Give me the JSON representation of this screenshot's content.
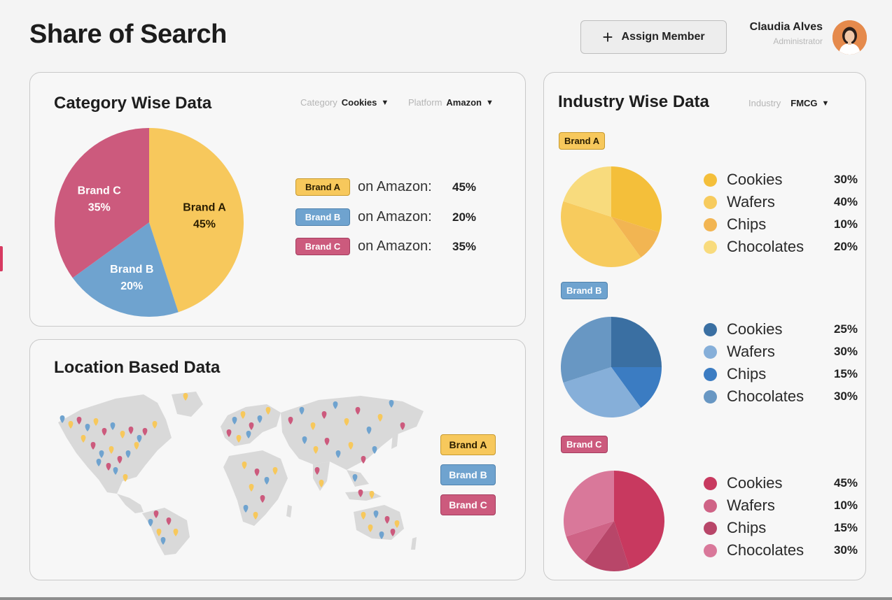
{
  "header": {
    "title": "Share of Search",
    "assign_label": "Assign Member",
    "user_name": "Claudia Alves",
    "user_role": "Administrator"
  },
  "category": {
    "title": "Category Wise Data",
    "filter_category_label": "Category",
    "filter_category_value": "Cookies",
    "filter_platform_label": "Platform",
    "filter_platform_value": "Amazon",
    "legend": [
      {
        "brand": "Brand A",
        "text": "on Amazon:",
        "pct": "45%"
      },
      {
        "brand": "Brand B",
        "text": "on Amazon:",
        "pct": "20%"
      },
      {
        "brand": "Brand C",
        "text": "on Amazon:",
        "pct": "35%"
      }
    ]
  },
  "location": {
    "title": "Location Based Data",
    "legend": [
      "Brand A",
      "Brand B",
      "Brand C"
    ]
  },
  "industry": {
    "title": "Industry Wise Data",
    "filter_label": "Industry",
    "filter_value": "FMCG",
    "brands": [
      {
        "badge": "Brand A",
        "rows": [
          {
            "name": "Cookies",
            "pct": "30%"
          },
          {
            "name": "Wafers",
            "pct": "40%"
          },
          {
            "name": "Chips",
            "pct": "10%"
          },
          {
            "name": "Chocolates",
            "pct": "20%"
          }
        ]
      },
      {
        "badge": "Brand B",
        "rows": [
          {
            "name": "Cookies",
            "pct": "25%"
          },
          {
            "name": "Wafers",
            "pct": "30%"
          },
          {
            "name": "Chips",
            "pct": "15%"
          },
          {
            "name": "Chocolates",
            "pct": "30%"
          }
        ]
      },
      {
        "badge": "Brand C",
        "rows": [
          {
            "name": "Cookies",
            "pct": "45%"
          },
          {
            "name": "Wafers",
            "pct": "10%"
          },
          {
            "name": "Chips",
            "pct": "15%"
          },
          {
            "name": "Chocolates",
            "pct": "30%"
          }
        ]
      }
    ]
  },
  "colors": {
    "brand_a": "#f7c85c",
    "brand_b": "#6fa3cf",
    "brand_c": "#cc5a7d",
    "brand_a_shades": [
      "#f4bf3a",
      "#f7cb5d",
      "#f2b552",
      "#f8db7d"
    ],
    "brand_b_shades": [
      "#3a6fa2",
      "#86afd9",
      "#3b7cc2",
      "#6897c3"
    ],
    "brand_c_shades": [
      "#c8395f",
      "#cf6386",
      "#b84669",
      "#d9789a"
    ]
  },
  "chart_data": [
    {
      "type": "pie",
      "title": "Category Wise Data",
      "categories": [
        "Brand A",
        "Brand B",
        "Brand C"
      ],
      "values": [
        45,
        20,
        35
      ],
      "data_labels": [
        "45%",
        "20%",
        "35%"
      ],
      "colors": [
        "#f7c85c",
        "#6fa3cf",
        "#cc5a7d"
      ]
    },
    {
      "type": "pie",
      "title": "Brand A",
      "categories": [
        "Cookies",
        "Wafers",
        "Chips",
        "Chocolates"
      ],
      "values": [
        30,
        40,
        10,
        20
      ]
    },
    {
      "type": "pie",
      "title": "Brand B",
      "categories": [
        "Cookies",
        "Wafers",
        "Chips",
        "Chocolates"
      ],
      "values": [
        25,
        30,
        15,
        30
      ]
    },
    {
      "type": "pie",
      "title": "Brand C",
      "categories": [
        "Cookies",
        "Wafers",
        "Chips",
        "Chocolates"
      ],
      "values": [
        45,
        10,
        15,
        30
      ]
    }
  ]
}
